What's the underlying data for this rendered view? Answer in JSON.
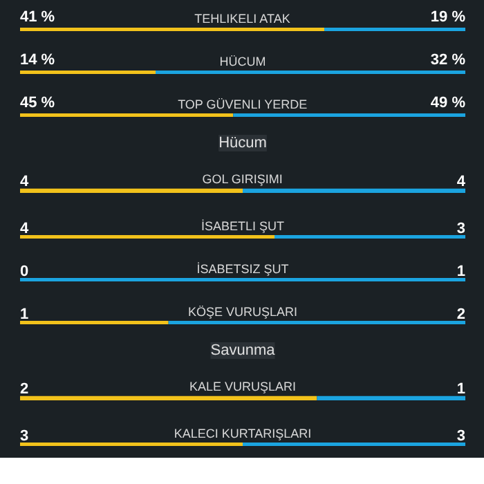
{
  "chart_data": [
    {
      "type": "bar",
      "orientation": "horizontal",
      "stacked": true,
      "categories": [
        "TEHLIKELI ATAK"
      ],
      "series": [
        {
          "color": "#f2c21b",
          "values": [
            41
          ],
          "value_labels": [
            "41 %"
          ]
        },
        {
          "color": "#1ba4e0",
          "values": [
            19
          ],
          "value_labels": [
            "19 %"
          ]
        }
      ]
    },
    {
      "type": "bar",
      "orientation": "horizontal",
      "stacked": true,
      "categories": [
        "HÜCUM"
      ],
      "series": [
        {
          "color": "#f2c21b",
          "values": [
            14
          ],
          "value_labels": [
            "14 %"
          ]
        },
        {
          "color": "#1ba4e0",
          "values": [
            32
          ],
          "value_labels": [
            "32 %"
          ]
        }
      ]
    },
    {
      "type": "bar",
      "orientation": "horizontal",
      "stacked": true,
      "categories": [
        "TOP GÜVENLI YERDE"
      ],
      "series": [
        {
          "color": "#f2c21b",
          "values": [
            45
          ],
          "value_labels": [
            "45 %"
          ]
        },
        {
          "color": "#1ba4e0",
          "values": [
            49
          ],
          "value_labels": [
            "49 %"
          ]
        }
      ]
    },
    {
      "type": "bar",
      "orientation": "horizontal",
      "stacked": true,
      "title": "Hücum",
      "categories": [
        "GOL GIRIŞIMI"
      ],
      "series": [
        {
          "color": "#f2c21b",
          "values": [
            4
          ],
          "value_labels": [
            "4"
          ]
        },
        {
          "color": "#1ba4e0",
          "values": [
            4
          ],
          "value_labels": [
            "4"
          ]
        }
      ]
    },
    {
      "type": "bar",
      "orientation": "horizontal",
      "stacked": true,
      "categories": [
        "İSABETLI ŞUT"
      ],
      "series": [
        {
          "color": "#f2c21b",
          "values": [
            4
          ],
          "value_labels": [
            "4"
          ]
        },
        {
          "color": "#1ba4e0",
          "values": [
            3
          ],
          "value_labels": [
            "3"
          ]
        }
      ]
    },
    {
      "type": "bar",
      "orientation": "horizontal",
      "stacked": true,
      "categories": [
        "İSABETSIZ ŞUT"
      ],
      "series": [
        {
          "color": "#f2c21b",
          "values": [
            0
          ],
          "value_labels": [
            "0"
          ]
        },
        {
          "color": "#1ba4e0",
          "values": [
            1
          ],
          "value_labels": [
            "1"
          ]
        }
      ]
    },
    {
      "type": "bar",
      "orientation": "horizontal",
      "stacked": true,
      "categories": [
        "KÖŞE VURUŞLARI"
      ],
      "series": [
        {
          "color": "#f2c21b",
          "values": [
            1
          ],
          "value_labels": [
            "1"
          ]
        },
        {
          "color": "#1ba4e0",
          "values": [
            2
          ],
          "value_labels": [
            "2"
          ]
        }
      ]
    },
    {
      "type": "bar",
      "orientation": "horizontal",
      "stacked": true,
      "title": "Savunma",
      "categories": [
        "KALE VURUŞLARI"
      ],
      "series": [
        {
          "color": "#f2c21b",
          "values": [
            2
          ],
          "value_labels": [
            "2"
          ]
        },
        {
          "color": "#1ba4e0",
          "values": [
            1
          ],
          "value_labels": [
            "1"
          ]
        }
      ]
    },
    {
      "type": "bar",
      "orientation": "horizontal",
      "stacked": true,
      "categories": [
        "KALECI KURTARIŞLARI"
      ],
      "series": [
        {
          "color": "#f2c21b",
          "values": [
            3
          ],
          "value_labels": [
            "3"
          ]
        },
        {
          "color": "#1ba4e0",
          "values": [
            3
          ],
          "value_labels": [
            "3"
          ]
        }
      ]
    }
  ]
}
